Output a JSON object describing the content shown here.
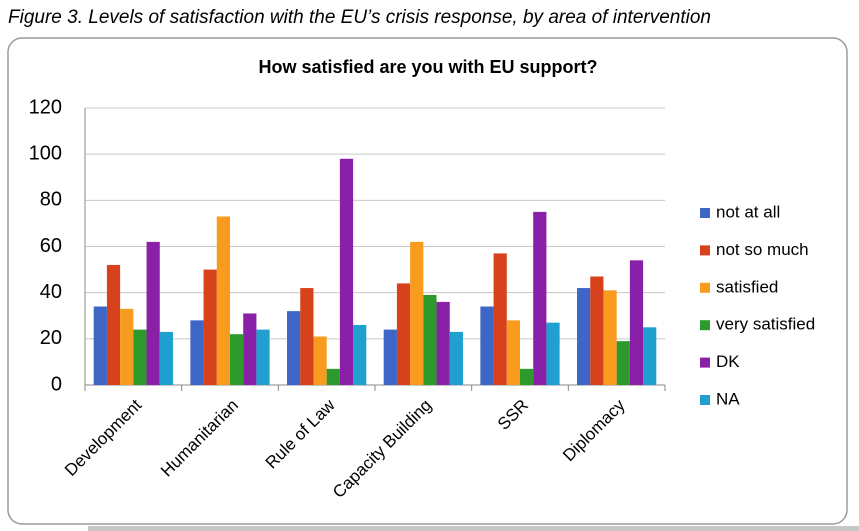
{
  "chart_data": {
    "type": "bar",
    "caption": "Figure 3. Levels of satisfaction with the EU’s crisis response, by area of intervention",
    "title": "How satisfied are you with EU support?",
    "categories": [
      "Development",
      "Humanitarian",
      "Rule of Law",
      "Capacity Building",
      "SSR",
      "Diplomacy"
    ],
    "series": [
      {
        "name": "not at all",
        "color": "#3d66c7",
        "values": [
          34,
          28,
          32,
          24,
          34,
          42
        ]
      },
      {
        "name": "not so much",
        "color": "#d7411b",
        "values": [
          52,
          50,
          42,
          44,
          57,
          47
        ]
      },
      {
        "name": "satisfied",
        "color": "#f89b1e",
        "values": [
          33,
          73,
          21,
          62,
          28,
          41
        ]
      },
      {
        "name": "very satisfied",
        "color": "#2c9a2c",
        "values": [
          24,
          22,
          7,
          39,
          7,
          19
        ]
      },
      {
        "name": "DK",
        "color": "#8a1fa8",
        "values": [
          62,
          31,
          98,
          36,
          75,
          54
        ]
      },
      {
        "name": "NA",
        "color": "#1fa0cf",
        "values": [
          23,
          24,
          26,
          23,
          27,
          25
        ]
      }
    ],
    "ylim": [
      0,
      120
    ],
    "yticks": [
      0,
      20,
      40,
      60,
      80,
      100,
      120
    ],
    "grid": true,
    "legend": "right"
  }
}
